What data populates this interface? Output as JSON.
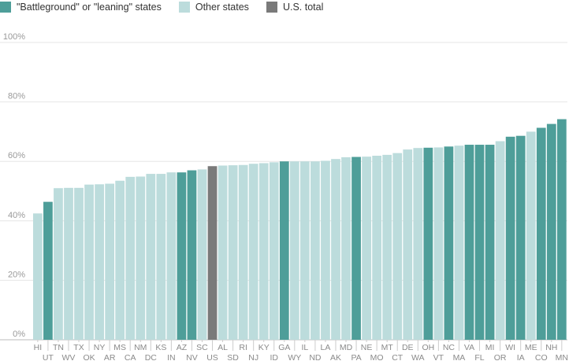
{
  "legend": [
    {
      "label": "\"Battleground\" or \"leaning\" states",
      "color": "#4e9e99"
    },
    {
      "label": "Other states",
      "color": "#bcdcdc"
    },
    {
      "label": "U.S. total",
      "color": "#7a7a7a"
    }
  ],
  "colors": {
    "battleground": "#4e9e99",
    "other": "#bcdcdc",
    "us": "#7a7a7a",
    "grid": "#e6e6e6",
    "axis": "#bbbbbb"
  },
  "chart_data": {
    "type": "bar",
    "ylim": [
      0,
      100
    ],
    "yticks": [
      "0%",
      "20%",
      "40%",
      "60%",
      "80%",
      "100%"
    ],
    "ytick_values": [
      0,
      20,
      40,
      60,
      80,
      100
    ],
    "grid": true,
    "legend_position": "top-left",
    "categories": [
      "HI",
      "UT",
      "TN",
      "WV",
      "TX",
      "OK",
      "NY",
      "AR",
      "MS",
      "CA",
      "NM",
      "DC",
      "KS",
      "IN",
      "AZ",
      "NV",
      "SC",
      "US",
      "AL",
      "SD",
      "RI",
      "NJ",
      "KY",
      "ID",
      "GA",
      "WY",
      "IL",
      "ND",
      "LA",
      "AK",
      "MD",
      "PA",
      "NE",
      "MO",
      "MT",
      "CT",
      "DE",
      "WA",
      "OH",
      "VT",
      "NC",
      "MA",
      "VA",
      "FL",
      "MI",
      "OR",
      "WI",
      "IA",
      "ME",
      "CO",
      "NH",
      "MN"
    ],
    "values": [
      42.5,
      46.4,
      51.0,
      51.1,
      51.1,
      52.2,
      52.3,
      52.5,
      53.5,
      54.8,
      54.9,
      55.8,
      55.8,
      56.3,
      56.3,
      57.0,
      57.3,
      58.4,
      58.6,
      58.7,
      58.8,
      59.2,
      59.4,
      59.7,
      60.0,
      60.0,
      60.0,
      60.0,
      60.2,
      60.8,
      61.4,
      61.5,
      61.6,
      61.9,
      62.2,
      62.8,
      64.0,
      64.5,
      64.6,
      64.7,
      65.0,
      65.3,
      65.6,
      65.6,
      65.6,
      66.8,
      68.3,
      68.6,
      70.0,
      71.3,
      72.6,
      74.2
    ],
    "groups": [
      "other",
      "battleground",
      "other",
      "other",
      "other",
      "other",
      "other",
      "other",
      "other",
      "other",
      "other",
      "other",
      "other",
      "other",
      "battleground",
      "battleground",
      "other",
      "us",
      "other",
      "other",
      "other",
      "other",
      "other",
      "other",
      "battleground",
      "other",
      "other",
      "other",
      "other",
      "other",
      "other",
      "battleground",
      "other",
      "other",
      "other",
      "other",
      "other",
      "other",
      "battleground",
      "other",
      "battleground",
      "other",
      "battleground",
      "battleground",
      "battleground",
      "other",
      "battleground",
      "battleground",
      "other",
      "battleground",
      "battleground",
      "battleground"
    ]
  }
}
